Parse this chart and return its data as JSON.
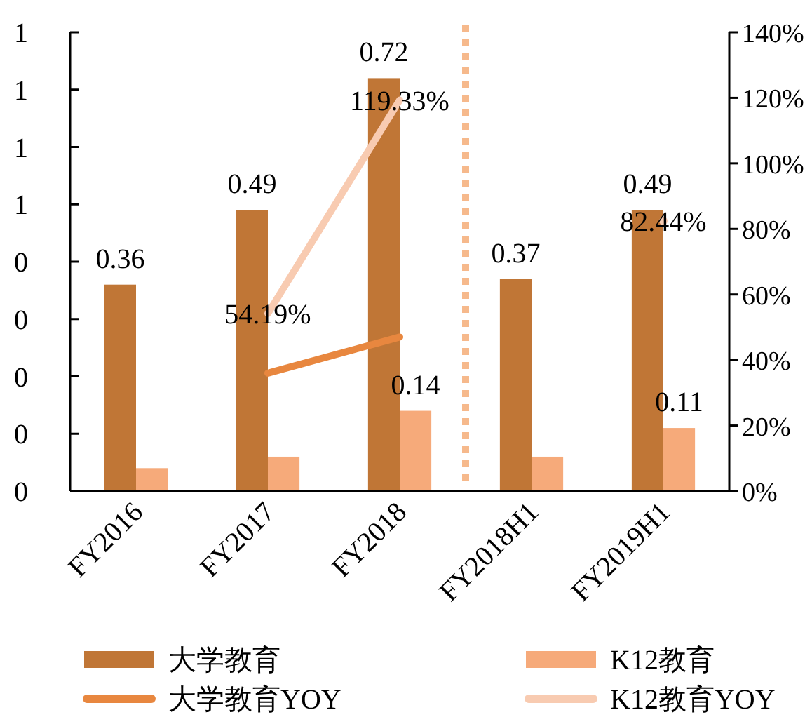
{
  "chart_data": {
    "type": "bar",
    "categories": [
      "FY2016",
      "FY2017",
      "FY2018",
      "FY2018H1",
      "FY2019H1"
    ],
    "series": [
      {
        "name": "大学教育",
        "type": "bar",
        "color": "#c07636",
        "values": [
          0.36,
          0.49,
          0.72,
          0.37,
          0.49
        ],
        "value_labels": [
          "0.36",
          "0.49",
          "0.72",
          "0.37",
          "0.49"
        ]
      },
      {
        "name": "K12教育",
        "type": "bar",
        "color": "#f6aa7a",
        "values": [
          0.04,
          0.06,
          0.14,
          0.06,
          0.11
        ],
        "value_labels": [
          null,
          null,
          "0.14",
          null,
          "0.11"
        ]
      },
      {
        "name": "大学教育YOY",
        "type": "line",
        "axis": "y2",
        "color": "#e8873f",
        "values": [
          null,
          36,
          47,
          null,
          null
        ]
      },
      {
        "name": "K12教育YOY",
        "type": "line",
        "axis": "y2",
        "color": "#f8cbb1",
        "values": [
          null,
          54.19,
          119.33,
          null,
          82.44
        ],
        "value_labels": [
          null,
          "54.19%",
          "119.33%",
          null,
          "82.44%"
        ]
      }
    ],
    "ylim": [
      0,
      0.8
    ],
    "yticks": [
      {
        "value": 0,
        "label": "0"
      },
      {
        "value": 0.1,
        "label": "0"
      },
      {
        "value": 0.2,
        "label": "0"
      },
      {
        "value": 0.3,
        "label": "0"
      },
      {
        "value": 0.4,
        "label": "0"
      },
      {
        "value": 0.5,
        "label": "1"
      },
      {
        "value": 0.6,
        "label": "1"
      },
      {
        "value": 0.7,
        "label": "1"
      },
      {
        "value": 0.8,
        "label": "1"
      }
    ],
    "y2lim": [
      0,
      140
    ],
    "y2ticks": [
      {
        "value": 0,
        "label": "0%"
      },
      {
        "value": 20,
        "label": "20%"
      },
      {
        "value": 40,
        "label": "40%"
      },
      {
        "value": 60,
        "label": "60%"
      },
      {
        "value": 80,
        "label": "80%"
      },
      {
        "value": 100,
        "label": "100%"
      },
      {
        "value": 120,
        "label": "120%"
      },
      {
        "value": 140,
        "label": "140%"
      }
    ],
    "legend": "bottom"
  }
}
